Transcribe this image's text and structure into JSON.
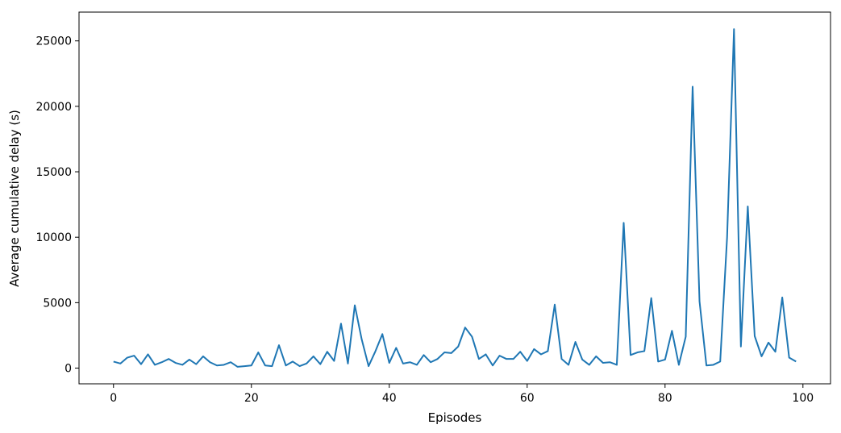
{
  "chart_data": {
    "type": "line",
    "title": "",
    "xlabel": "Episodes",
    "ylabel": "Average cumulative delay (s)",
    "xlim": [
      -5,
      104
    ],
    "ylim": [
      -1200,
      27200
    ],
    "xticks": [
      0,
      20,
      40,
      60,
      80,
      100
    ],
    "yticks": [
      0,
      5000,
      10000,
      15000,
      20000,
      25000
    ],
    "grid": false,
    "legend": "none",
    "series": [
      {
        "color": "#1f77b4",
        "x": [
          0,
          1,
          2,
          3,
          4,
          5,
          6,
          7,
          8,
          9,
          10,
          11,
          12,
          13,
          14,
          15,
          16,
          17,
          18,
          19,
          20,
          21,
          22,
          23,
          24,
          25,
          26,
          27,
          28,
          29,
          30,
          31,
          32,
          33,
          34,
          35,
          36,
          37,
          38,
          39,
          40,
          41,
          42,
          43,
          44,
          45,
          46,
          47,
          48,
          49,
          50,
          51,
          52,
          53,
          54,
          55,
          56,
          57,
          58,
          59,
          60,
          61,
          62,
          63,
          64,
          65,
          66,
          67,
          68,
          69,
          70,
          71,
          72,
          73,
          74,
          75,
          76,
          77,
          78,
          79,
          80,
          81,
          82,
          83,
          84,
          85,
          86,
          87,
          88,
          89,
          90,
          91,
          92,
          93,
          94,
          95,
          96,
          97,
          98,
          99
        ],
        "y": [
          500,
          350,
          800,
          950,
          300,
          1050,
          250,
          450,
          700,
          400,
          250,
          650,
          300,
          900,
          450,
          200,
          250,
          450,
          100,
          150,
          200,
          1200,
          200,
          150,
          1750,
          200,
          500,
          150,
          350,
          900,
          300,
          1250,
          550,
          3400,
          350,
          4800,
          2200,
          150,
          1300,
          2600,
          400,
          1550,
          350,
          450,
          250,
          1000,
          450,
          700,
          1200,
          1150,
          1650,
          3100,
          2400,
          700,
          1050,
          200,
          950,
          700,
          700,
          1250,
          550,
          1450,
          1050,
          1300,
          4850,
          700,
          250,
          2000,
          650,
          250,
          900,
          400,
          450,
          250,
          11100,
          1000,
          1200,
          1300,
          5350,
          500,
          650,
          2850,
          250,
          2400,
          21500,
          5100,
          200,
          250,
          500,
          10000,
          25900,
          1650,
          12350,
          2450,
          900,
          1950,
          1250,
          5400,
          800,
          500
        ]
      }
    ]
  }
}
